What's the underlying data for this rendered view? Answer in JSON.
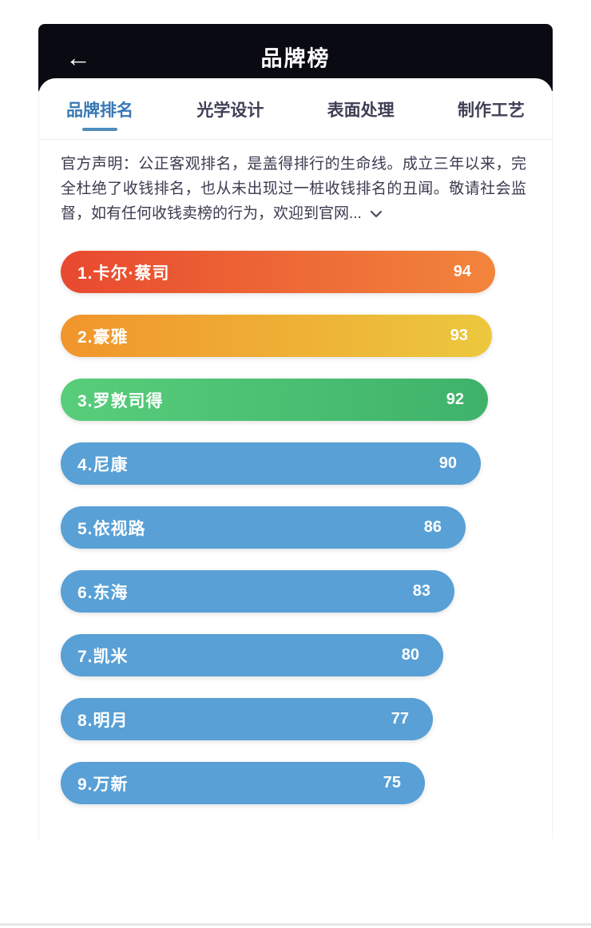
{
  "header": {
    "title": "品牌榜",
    "back_icon": "←"
  },
  "tabs": [
    {
      "label": "品牌排名",
      "active": true
    },
    {
      "label": "光学设计",
      "active": false
    },
    {
      "label": "表面处理",
      "active": false
    },
    {
      "label": "制作工艺",
      "active": false
    }
  ],
  "disclaimer": {
    "text": "官方声明：公正客观排名，是盖得排行的生命线。成立三年以来，完全杜绝了收钱排名，也从未出现过一桩收钱排名的丑闻。敬请社会监督，如有任何收钱卖榜的行为，欢迎到官网...",
    "expand_icon": "chevron-down"
  },
  "chart_data": {
    "type": "bar",
    "orientation": "horizontal",
    "title": "品牌排名",
    "categories": [
      "1.卡尔·蔡司",
      "2.豪雅",
      "3.罗敦司得",
      "4.尼康",
      "5.依视路",
      "6.东海",
      "7.凯米",
      "8.明月",
      "9.万新"
    ],
    "values": [
      94,
      93,
      92,
      90,
      86,
      83,
      80,
      77,
      75
    ],
    "xlim": [
      0,
      100
    ],
    "value_labels_position": "inside-right",
    "bar_colors": [
      [
        "#e8492f",
        "#f2853c"
      ],
      [
        "#f1952c",
        "#ecc83e"
      ],
      [
        "#58ce7b",
        "#3fb26a"
      ],
      [
        "#58a0d6",
        "#58a0d6"
      ],
      [
        "#58a0d6",
        "#58a0d6"
      ],
      [
        "#58a0d6",
        "#58a0d6"
      ],
      [
        "#58a0d6",
        "#58a0d6"
      ],
      [
        "#58a0d6",
        "#58a0d6"
      ],
      [
        "#58a0d6",
        "#58a0d6"
      ]
    ]
  },
  "colors": {
    "header_bg": "#0a0b12",
    "active_tab": "#3878b4",
    "tab_underline": "#4d8cba",
    "inactive_tab": "#3f3f55",
    "bar_blue": "#58a0d6",
    "bar_text": "#ffffff"
  }
}
